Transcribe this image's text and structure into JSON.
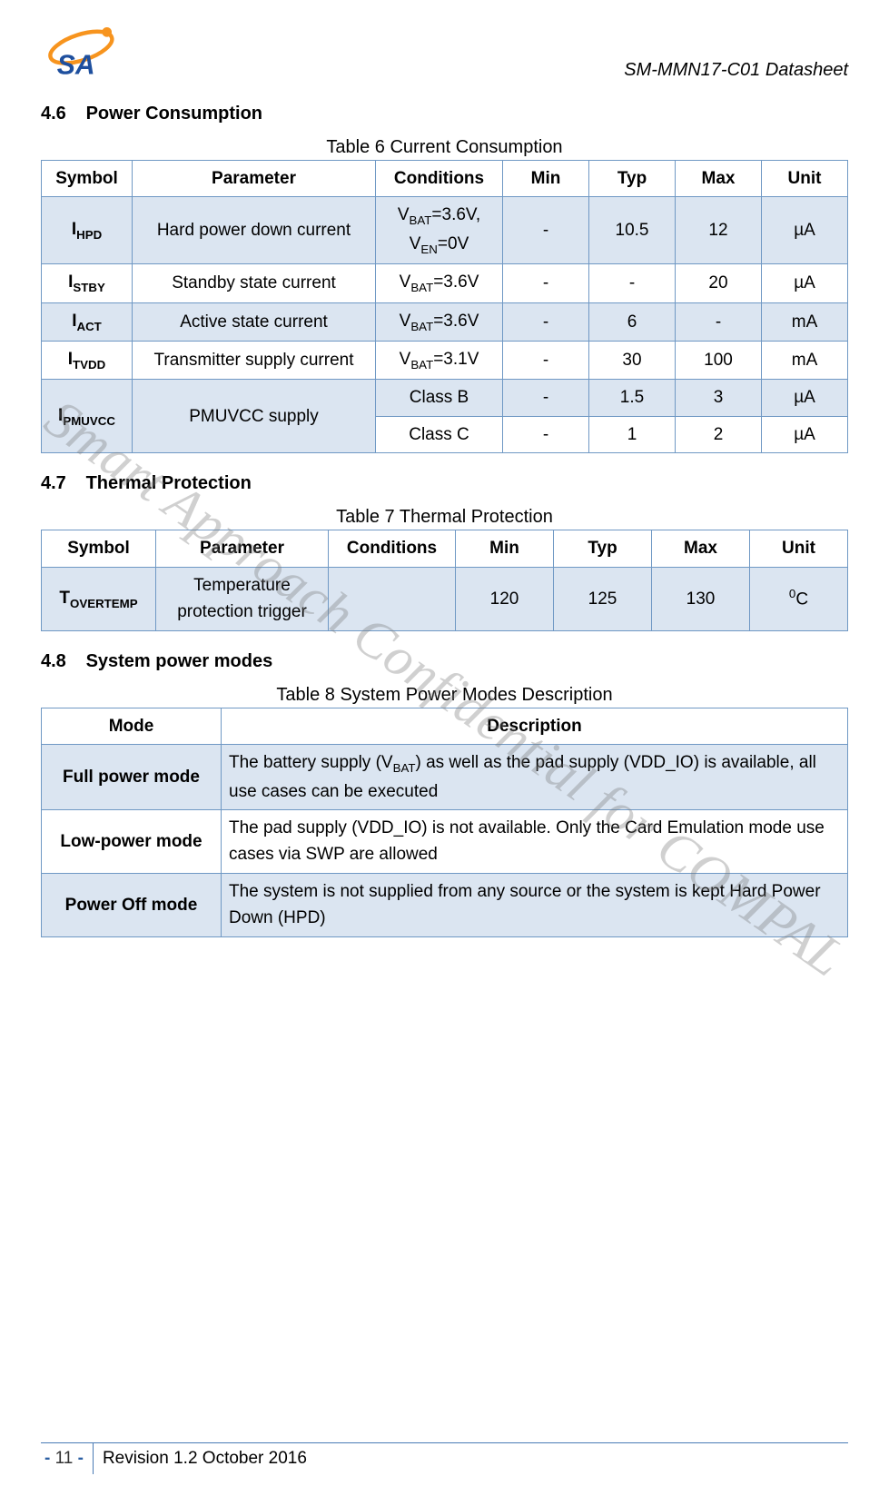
{
  "header": {
    "doc_title": "SM-MMN17-C01 Datasheet",
    "logo_colors": {
      "orange": "#f7941e",
      "blue": "#1e4f9e",
      "text": "#1e4f9e"
    }
  },
  "watermark": "Smart Approach Confidential for COMPAL",
  "sections": {
    "s46": {
      "num": "4.6",
      "title": "Power Consumption"
    },
    "s47": {
      "num": "4.7",
      "title": "Thermal Protection"
    },
    "s48": {
      "num": "4.8",
      "title": "System power modes"
    }
  },
  "table6": {
    "caption": "Table 6 Current Consumption",
    "headers": [
      "Symbol",
      "Parameter",
      "Conditions",
      "Min",
      "Typ",
      "Max",
      "Unit"
    ],
    "colors": {
      "border": "#6f98c4",
      "tint": "#dbe5f1"
    },
    "rows": [
      {
        "tint": true,
        "symbol_html": "I<sub>HPD</sub>",
        "param": "Hard power down current",
        "cond_html": "V<sub>BAT</sub>=3.6V, V<sub>EN</sub>=0V",
        "min": "-",
        "typ": "10.5",
        "max": "12",
        "unit": "µA"
      },
      {
        "tint": false,
        "symbol_html": "I<sub>STBY</sub>",
        "param": "Standby state current",
        "cond_html": "V<sub>BAT</sub>=3.6V",
        "min": "-",
        "typ": "-",
        "max": "20",
        "unit": "µA"
      },
      {
        "tint": true,
        "symbol_html": "I<sub>ACT</sub>",
        "param": "Active state current",
        "cond_html": "V<sub>BAT</sub>=3.6V",
        "min": "-",
        "typ": "6",
        "max": "-",
        "unit": "mA"
      },
      {
        "tint": false,
        "symbol_html": "I<sub>TVDD</sub>",
        "param": "Transmitter supply current",
        "cond_html": "V<sub>BAT</sub>=3.1V",
        "min": "-",
        "typ": "30",
        "max": "100",
        "unit": "mA"
      }
    ],
    "pmuvcc": {
      "symbol_html": "I<sub>PMUVCC</sub>",
      "param": "PMUVCC supply",
      "sub": [
        {
          "tint": true,
          "cond": "Class B",
          "min": "-",
          "typ": "1.5",
          "max": "3",
          "unit": "µA"
        },
        {
          "tint": false,
          "cond": "Class C",
          "min": "-",
          "typ": "1",
          "max": "2",
          "unit": "µA"
        }
      ]
    }
  },
  "table7": {
    "caption": "Table 7 Thermal Protection",
    "headers": [
      "Symbol",
      "Parameter",
      "Conditions",
      "Min",
      "Typ",
      "Max",
      "Unit"
    ],
    "row": {
      "symbol_html": "T<sub>OVERTEMP</sub>",
      "param": "Temperature protection trigger",
      "cond": "",
      "min": "120",
      "typ": "125",
      "max": "130",
      "unit_html": "<sup>0</sup>C"
    }
  },
  "table8": {
    "caption": "Table 8 System Power Modes Description",
    "headers": [
      "Mode",
      "Description"
    ],
    "rows": [
      {
        "tint": true,
        "mode": "Full power mode",
        "desc_html": "The battery supply (V<sub>BAT</sub>) as well as the pad supply (VDD_IO) is available, all use cases can be executed"
      },
      {
        "tint": false,
        "mode": "Low-power mode",
        "desc_html": "The pad supply (VDD_IO) is not available. Only the Card Emulation mode use cases via SWP are allowed"
      },
      {
        "tint": true,
        "mode": "Power Off mode",
        "desc_html": "The system is not supplied from any source or the system is kept Hard Power Down (HPD)"
      }
    ]
  },
  "footer": {
    "page_prefix": "- ",
    "page_num": "11",
    "page_suffix": " -",
    "revision": "Revision 1.2 October 2016",
    "border_color": "#4a7bb5"
  }
}
